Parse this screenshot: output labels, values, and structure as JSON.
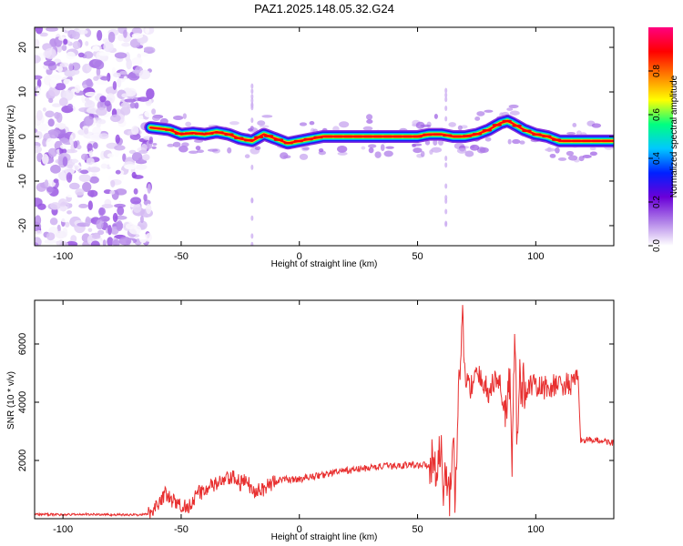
{
  "figure": {
    "title": "PAZ1.2025.148.05.32.G24"
  },
  "chart_data": [
    {
      "type": "heatmap",
      "title": "PAZ1.2025.148.05.32.G24",
      "xlabel": "Height of straight line (km)",
      "ylabel": "Frequency (Hz)",
      "xlim": [
        -112,
        133
      ],
      "ylim": [
        -24.5,
        24.5
      ],
      "xticks": [
        -100,
        -50,
        0,
        50,
        100
      ],
      "yticks": [
        -20,
        -10,
        0,
        10,
        20
      ],
      "noise_region_x": [
        -112,
        -64
      ],
      "signal_start_x": -63,
      "ridge": {
        "x": [
          -63,
          -55,
          -50,
          -45,
          -40,
          -35,
          -30,
          -25,
          -20,
          -15,
          -10,
          -5,
          0,
          5,
          10,
          15,
          20,
          25,
          30,
          35,
          40,
          45,
          50,
          55,
          60,
          65,
          70,
          75,
          80,
          85,
          88,
          90,
          95,
          100,
          105,
          110,
          115,
          120,
          125,
          133
        ],
        "y": [
          2.0,
          1.5,
          0.5,
          0.8,
          0.5,
          1.0,
          0.5,
          -0.5,
          -1.0,
          0.5,
          -0.5,
          -1.5,
          -1.0,
          -0.5,
          0.0,
          0.0,
          0.0,
          0.0,
          0.0,
          0.0,
          0.0,
          0.0,
          0.0,
          0.5,
          0.5,
          0.0,
          0.0,
          0.5,
          1.5,
          3.0,
          3.5,
          3.0,
          1.5,
          0.5,
          0.0,
          -1.0,
          -1.0,
          -1.0,
          -1.0,
          -1.0
        ]
      },
      "colorbar": {
        "label": "Normalized spectral amplitude",
        "range": [
          0.0,
          1.0
        ],
        "ticks": [
          "0.0",
          "0.2",
          "0.4",
          "0.6",
          "0.8"
        ],
        "tick_values": [
          0.0,
          0.2,
          0.4,
          0.6,
          0.8
        ],
        "colors": [
          "#ffffff",
          "#b080e8",
          "#6a00d8",
          "#0020ff",
          "#00c8ff",
          "#00ff80",
          "#ffff00",
          "#ff8000",
          "#ff0000",
          "#ff0080"
        ]
      },
      "grid": false
    },
    {
      "type": "line",
      "xlabel": "Height of straight line (km)",
      "ylabel": "SNR (10 * v/v)",
      "xlim": [
        -112,
        133
      ],
      "ylim": [
        0,
        7500
      ],
      "xticks": [
        -100,
        -50,
        0,
        50,
        100
      ],
      "yticks": [
        2000,
        4000,
        6000
      ],
      "series": [
        {
          "color": "#e83030",
          "x": [
            -112,
            -100,
            -90,
            -80,
            -70,
            -64,
            -60,
            -57,
            -55,
            -52,
            -50,
            -47,
            -45,
            -42,
            -40,
            -37,
            -35,
            -32,
            -30,
            -27,
            -25,
            -22,
            -20,
            -17,
            -15,
            -12,
            -10,
            -5,
            0,
            5,
            10,
            15,
            20,
            25,
            30,
            35,
            40,
            45,
            50,
            55,
            57,
            59,
            60,
            61,
            62,
            63,
            64,
            65,
            66,
            67,
            68,
            69,
            70,
            72,
            75,
            78,
            80,
            83,
            85,
            87,
            89,
            90,
            91,
            92,
            93,
            94,
            95,
            97,
            100,
            105,
            110,
            115,
            117,
            118,
            119,
            120,
            125,
            130,
            133
          ],
          "y": [
            150,
            140,
            150,
            140,
            130,
            150,
            500,
            850,
            700,
            500,
            450,
            400,
            700,
            900,
            1000,
            1100,
            1200,
            1300,
            1350,
            1400,
            1200,
            1300,
            900,
            1100,
            1000,
            1200,
            1300,
            1350,
            1350,
            1450,
            1500,
            1600,
            1650,
            1700,
            1750,
            1800,
            1800,
            1850,
            1850,
            1850,
            1950,
            2100,
            2300,
            700,
            1800,
            1000,
            600,
            3400,
            200,
            4100,
            4900,
            7200,
            4800,
            4500,
            4900,
            4700,
            4300,
            4800,
            4600,
            3600,
            4900,
            1800,
            6200,
            3000,
            4700,
            4500,
            4500,
            4600,
            4500,
            4500,
            4600,
            4600,
            4700,
            4700,
            2700,
            2700,
            2700,
            2650,
            2600
          ]
        }
      ],
      "grid": false
    }
  ]
}
